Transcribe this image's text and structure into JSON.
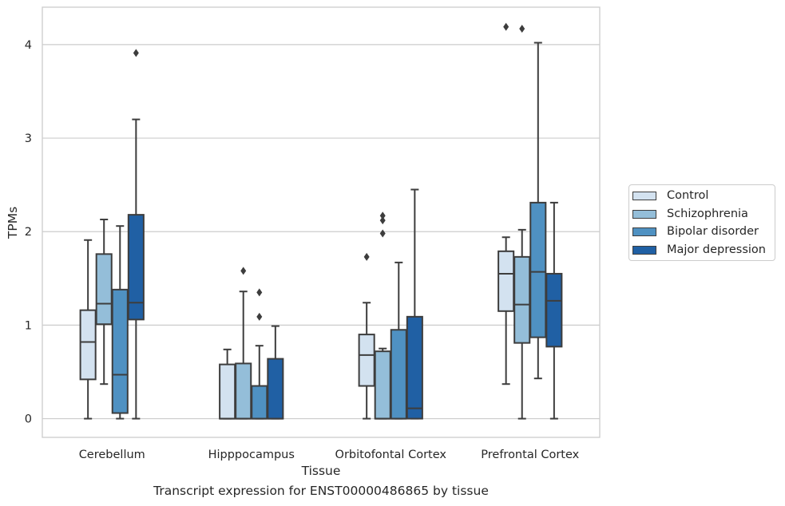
{
  "chart_data": {
    "type": "box",
    "xlabel": "Tissue",
    "ylabel": "TPMs",
    "caption": "Transcript expression for ENST00000486865 by tissue",
    "ylim": [
      -0.2,
      4.4
    ],
    "yticks": [
      0,
      1,
      2,
      3,
      4
    ],
    "grid": "horizontal",
    "legend_position": "right",
    "categories": [
      "Cerebellum",
      "Hipppocampus",
      "Orbitofontal Cortex",
      "Prefrontal Cortex"
    ],
    "series": [
      {
        "name": "Control",
        "color": "#d3e2f0",
        "boxes": [
          {
            "whisker_low": 0.0,
            "q1": 0.42,
            "median": 0.82,
            "q3": 1.16,
            "whisker_high": 1.91,
            "outliers": []
          },
          {
            "whisker_low": 0.0,
            "q1": 0.0,
            "median": 0.0,
            "q3": 0.58,
            "whisker_high": 0.74,
            "outliers": []
          },
          {
            "whisker_low": 0.0,
            "q1": 0.35,
            "median": 0.68,
            "q3": 0.9,
            "whisker_high": 1.24,
            "outliers": [
              1.73
            ]
          },
          {
            "whisker_low": 0.37,
            "q1": 1.15,
            "median": 1.55,
            "q3": 1.79,
            "whisker_high": 1.94,
            "outliers": [
              4.19
            ]
          }
        ]
      },
      {
        "name": "Schizophrenia",
        "color": "#94bed9",
        "boxes": [
          {
            "whisker_low": 0.37,
            "q1": 1.01,
            "median": 1.23,
            "q3": 1.76,
            "whisker_high": 2.13,
            "outliers": []
          },
          {
            "whisker_low": 0.0,
            "q1": 0.0,
            "median": 0.0,
            "q3": 0.59,
            "whisker_high": 1.36,
            "outliers": [
              1.58
            ]
          },
          {
            "whisker_low": 0.0,
            "q1": 0.0,
            "median": 0.0,
            "q3": 0.72,
            "whisker_high": 0.75,
            "outliers": [
              1.98,
              2.12,
              2.17
            ]
          },
          {
            "whisker_low": 0.0,
            "q1": 0.81,
            "median": 1.22,
            "q3": 1.73,
            "whisker_high": 2.02,
            "outliers": [
              4.17
            ]
          }
        ]
      },
      {
        "name": "Bipolar disorder",
        "color": "#4f91c2",
        "boxes": [
          {
            "whisker_low": 0.0,
            "q1": 0.06,
            "median": 0.47,
            "q3": 1.38,
            "whisker_high": 2.06,
            "outliers": []
          },
          {
            "whisker_low": 0.0,
            "q1": 0.0,
            "median": 0.0,
            "q3": 0.35,
            "whisker_high": 0.78,
            "outliers": [
              1.09,
              1.35
            ]
          },
          {
            "whisker_low": 0.0,
            "q1": 0.0,
            "median": 0.0,
            "q3": 0.95,
            "whisker_high": 1.67,
            "outliers": []
          },
          {
            "whisker_low": 0.43,
            "q1": 0.87,
            "median": 1.57,
            "q3": 2.31,
            "whisker_high": 4.02,
            "outliers": []
          }
        ]
      },
      {
        "name": "Major depression",
        "color": "#2060a4",
        "boxes": [
          {
            "whisker_low": 0.0,
            "q1": 1.06,
            "median": 1.24,
            "q3": 2.18,
            "whisker_high": 3.2,
            "outliers": [
              3.91
            ]
          },
          {
            "whisker_low": 0.0,
            "q1": 0.0,
            "median": 0.0,
            "q3": 0.64,
            "whisker_high": 0.99,
            "outliers": []
          },
          {
            "whisker_low": 0.0,
            "q1": 0.0,
            "median": 0.11,
            "q3": 1.09,
            "whisker_high": 2.45,
            "outliers": []
          },
          {
            "whisker_low": 0.0,
            "q1": 0.77,
            "median": 1.26,
            "q3": 1.55,
            "whisker_high": 2.31,
            "outliers": []
          }
        ]
      }
    ]
  }
}
